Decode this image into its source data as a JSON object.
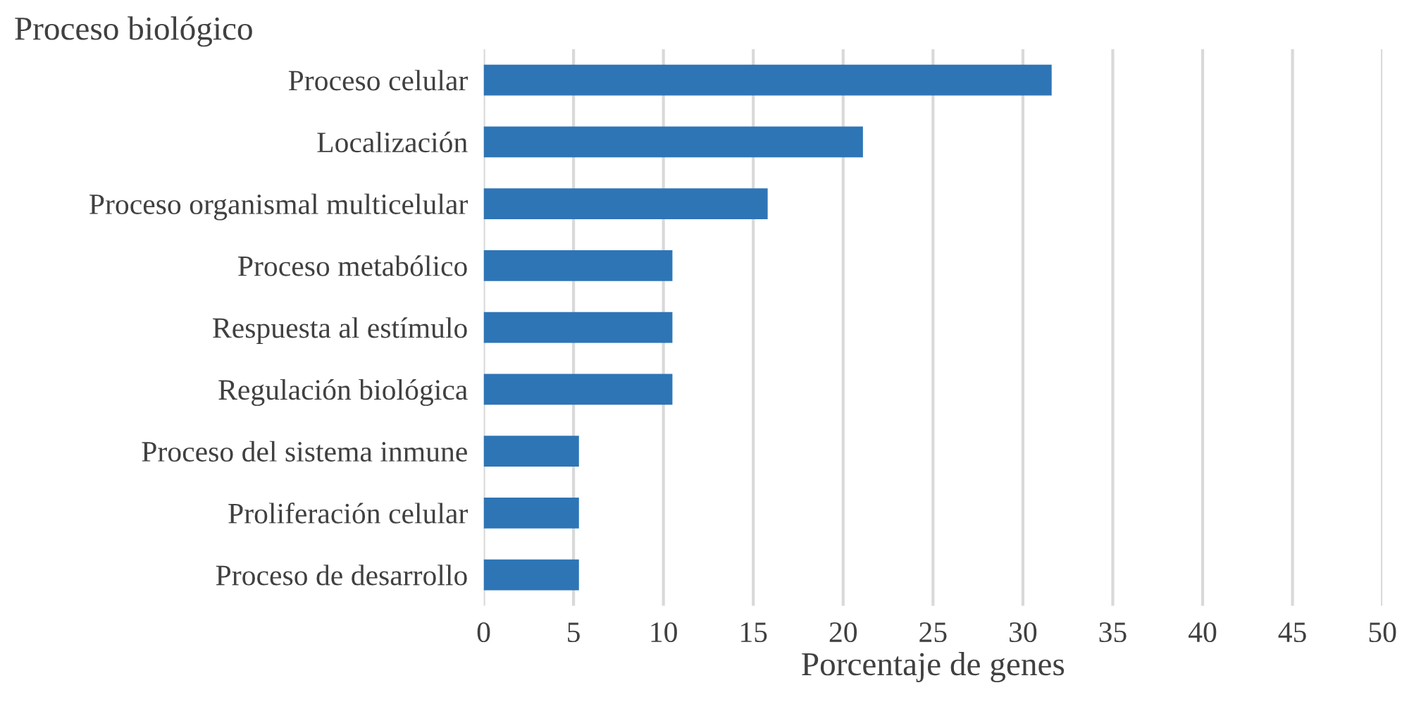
{
  "chart_data": {
    "type": "bar",
    "orientation": "horizontal",
    "ylabel": "Proceso biológico",
    "xlabel": "Porcentaje de genes",
    "categories": [
      "Proceso celular",
      "Localización",
      "Proceso organismal multicelular",
      "Proceso metabólico",
      "Respuesta al estímulo",
      "Regulación biológica",
      "Proceso del sistema inmune",
      "Proliferación celular",
      "Proceso de desarrollo"
    ],
    "values": [
      31.6,
      21.1,
      15.8,
      10.5,
      10.5,
      10.5,
      5.3,
      5.3,
      5.3
    ],
    "color": "#2e75b6",
    "xlim": [
      0,
      50
    ],
    "xticks": [
      0,
      5,
      10,
      15,
      20,
      25,
      30,
      35,
      40,
      45,
      50
    ],
    "grid": "x",
    "legend": false
  }
}
